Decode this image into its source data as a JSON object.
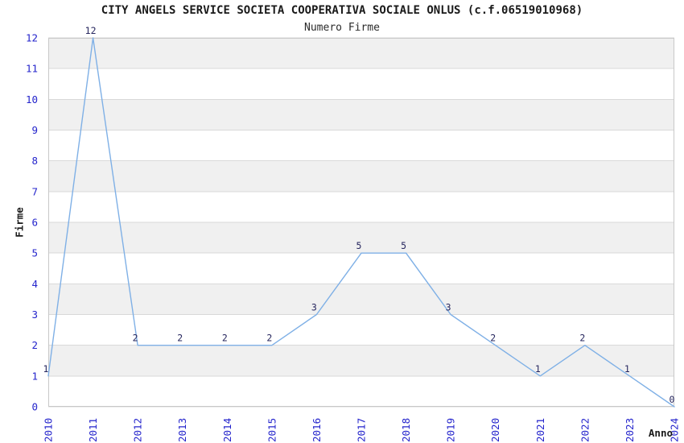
{
  "chart_data": {
    "type": "line",
    "title": "CITY ANGELS SERVICE SOCIETA COOPERATIVA SOCIALE ONLUS (c.f.06519010968)",
    "subtitle": "Numero Firme",
    "x": [
      "2010",
      "2011",
      "2012",
      "2013",
      "2014",
      "2015",
      "2016",
      "2017",
      "2018",
      "2019",
      "2020",
      "2021",
      "2022",
      "2023",
      "2024"
    ],
    "values": [
      1,
      12,
      2,
      2,
      2,
      2,
      3,
      5,
      5,
      3,
      2,
      1,
      2,
      1,
      0
    ],
    "point_labels": [
      "1",
      "12",
      "2",
      "2",
      "2",
      "2",
      "3",
      "5",
      "5",
      "3",
      "2",
      "1",
      "2",
      "1",
      "0"
    ],
    "xlabel": "Anno",
    "ylabel": "Firme",
    "ylim": [
      0,
      12
    ],
    "yticks": [
      0,
      1,
      2,
      3,
      4,
      5,
      6,
      7,
      8,
      9,
      10,
      11,
      12
    ],
    "grid": "horizontal gridlines with alternating gray/white unit bands",
    "legend": "none"
  },
  "colors": {
    "line": "#7fb0e6",
    "tick_label": "#2525cc",
    "point_label": "#26265e",
    "band": "#f0f0f0",
    "grid_line": "#d9d9d9",
    "axis_border": "#c8c8c8",
    "title_text": "#1a1a1a",
    "axis_label_text": "#1a1a1a"
  }
}
